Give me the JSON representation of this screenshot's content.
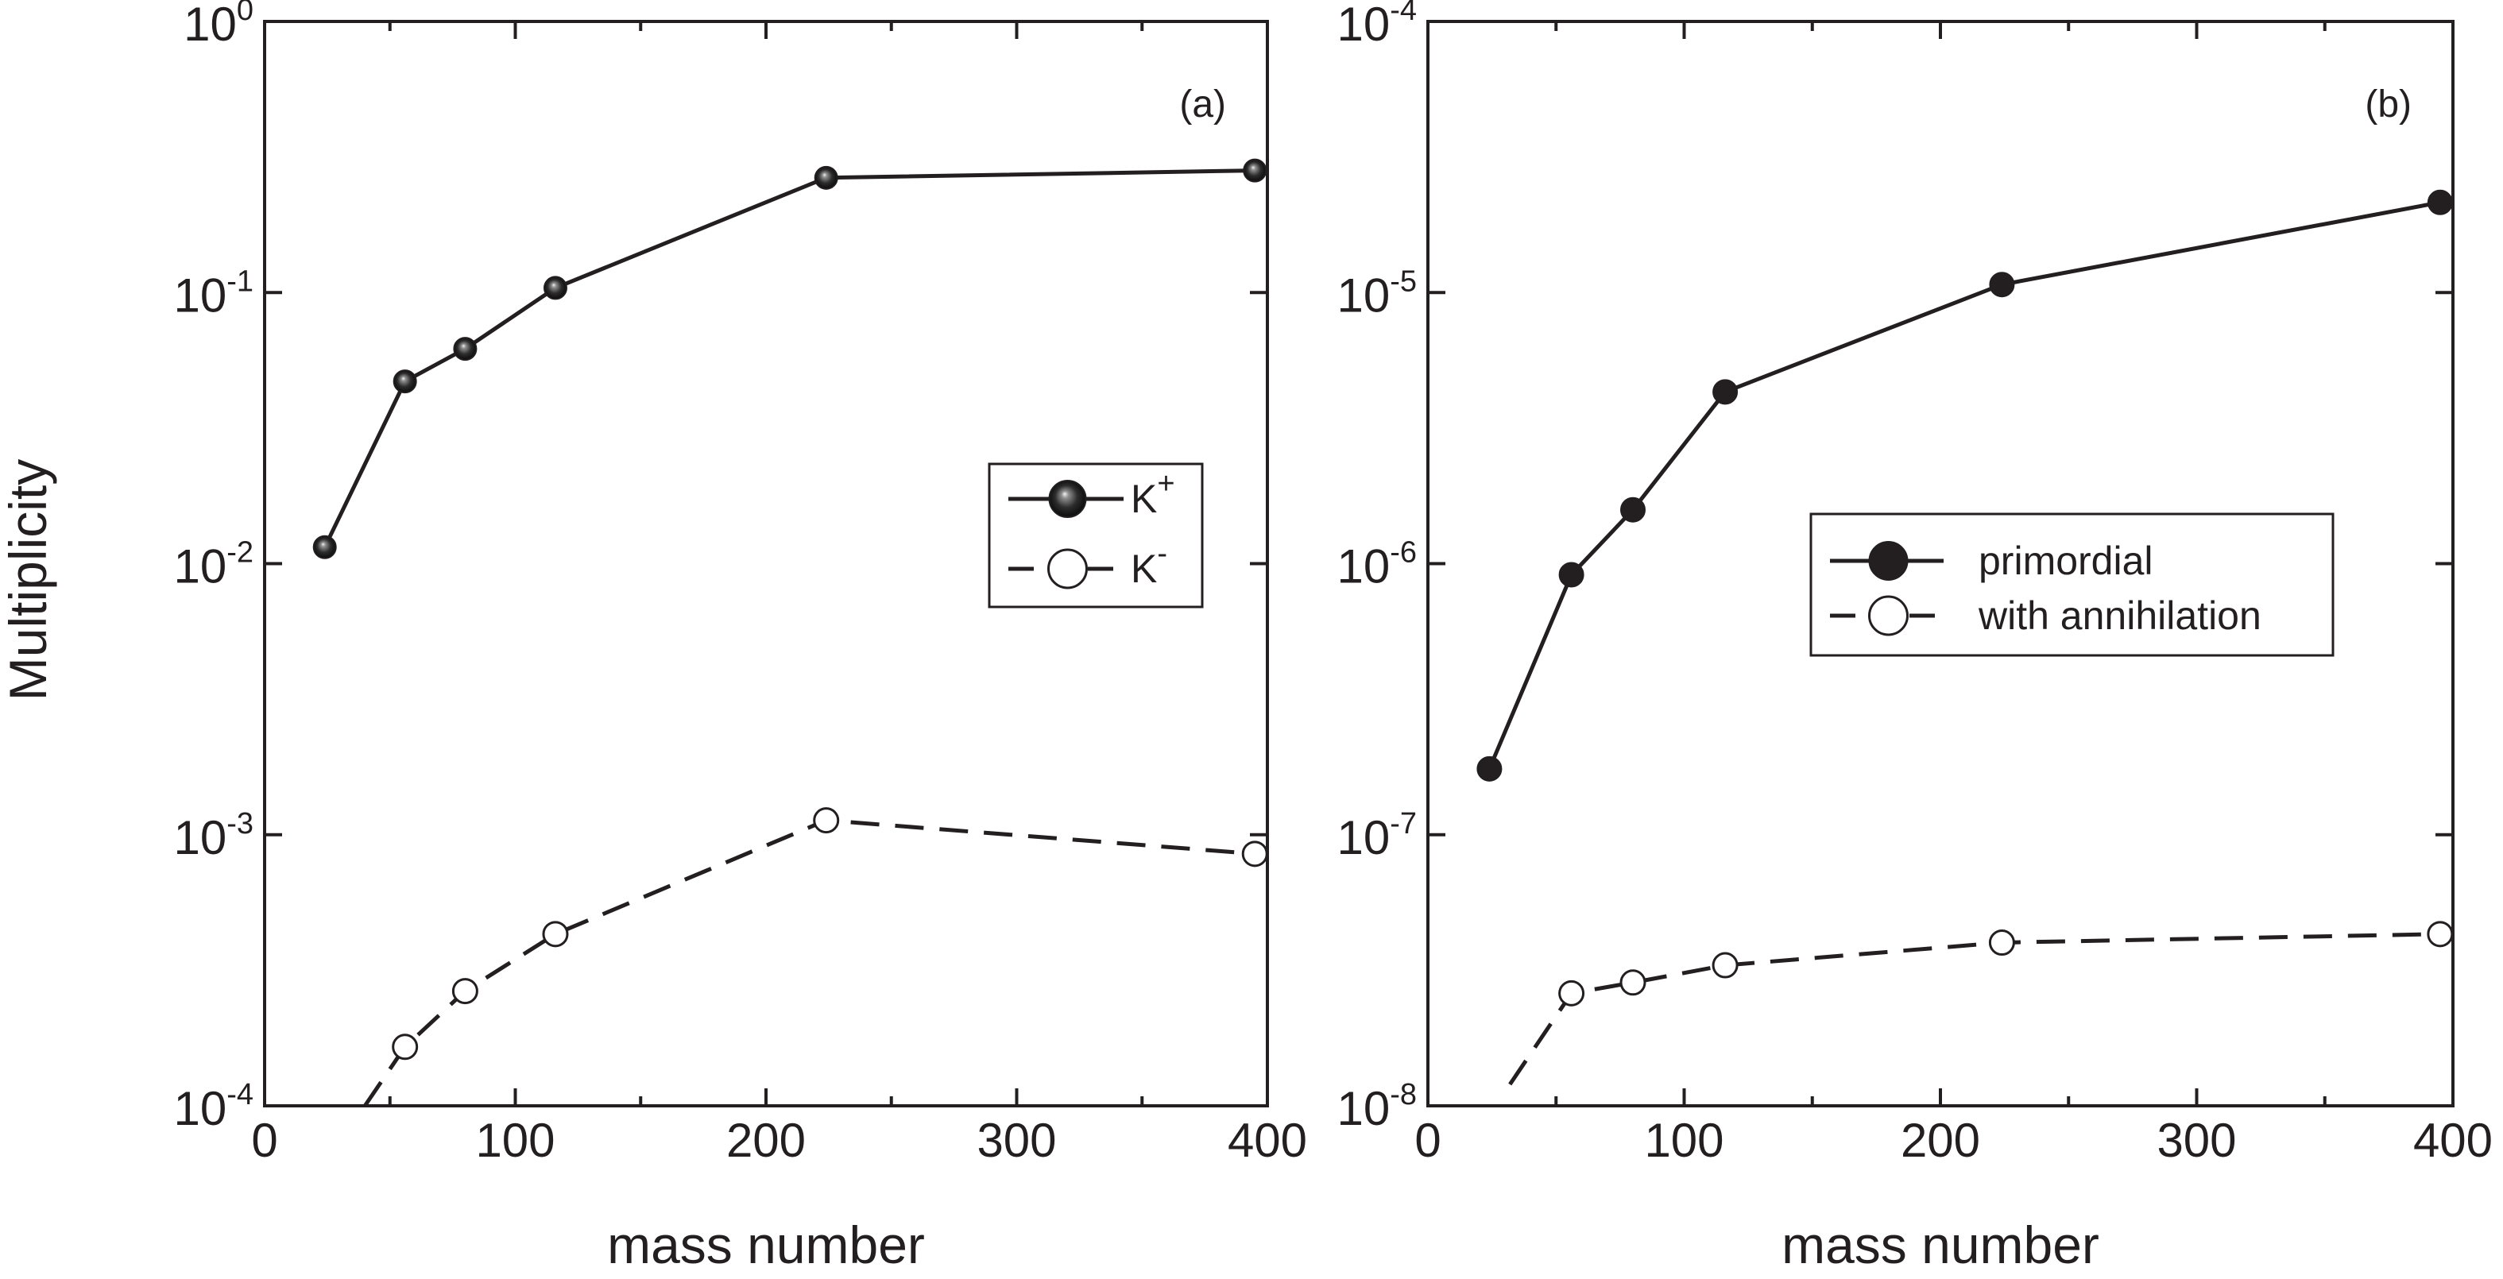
{
  "figure": {
    "ylabel": "Multiplicity",
    "colors": {
      "ink": "#231f20",
      "background": "#ffffff",
      "open_fill": "#ffffff"
    }
  },
  "chart_data": [
    {
      "type": "line",
      "panel_label": "(a)",
      "xlabel": "mass number",
      "ylabel": "Multiplicity",
      "xlim": [
        0,
        400
      ],
      "ylim": [
        0.0001,
        1
      ],
      "yscale": "log",
      "x_ticks": [
        {
          "value": 0,
          "label": "0"
        },
        {
          "value": 100,
          "label": "100"
        },
        {
          "value": 200,
          "label": "200"
        },
        {
          "value": 300,
          "label": "300"
        },
        {
          "value": 400,
          "label": "400"
        }
      ],
      "y_ticks": [
        {
          "exp": 0,
          "base": "10",
          "sup": "0"
        },
        {
          "exp": -1,
          "base": "10",
          "sup": "-1"
        },
        {
          "exp": -2,
          "base": "10",
          "sup": "-2"
        },
        {
          "exp": -3,
          "base": "10",
          "sup": "-3"
        },
        {
          "exp": -4,
          "base": "10",
          "sup": "-4"
        }
      ],
      "legend_position": "center-right",
      "series": [
        {
          "name": "K+",
          "label": "K",
          "label_sup": "+",
          "style": "solid",
          "marker": "sphere",
          "x": [
            24,
            56,
            80,
            116,
            224,
            395
          ],
          "y": [
            0.0115,
            0.047,
            0.062,
            0.104,
            0.265,
            0.282
          ]
        },
        {
          "name": "K-",
          "label": "K",
          "label_sup": "-",
          "style": "dashed",
          "marker": "open-circle",
          "line_start": {
            "x": 40,
            "y": 0.0001
          },
          "x": [
            56,
            80,
            116,
            224,
            395
          ],
          "y": [
            0.000165,
            0.000265,
            0.00043,
            0.00113,
            0.00085
          ]
        }
      ]
    },
    {
      "type": "line",
      "panel_label": "(b)",
      "xlabel": "mass number",
      "ylabel": "",
      "xlim": [
        0,
        400
      ],
      "ylim": [
        1e-08,
        0.0001
      ],
      "yscale": "log",
      "x_ticks": [
        {
          "value": 0,
          "label": "0"
        },
        {
          "value": 100,
          "label": "100"
        },
        {
          "value": 200,
          "label": "200"
        },
        {
          "value": 300,
          "label": "300"
        },
        {
          "value": 400,
          "label": "400"
        }
      ],
      "y_ticks": [
        {
          "exp": -4,
          "base": "10",
          "sup": "-4"
        },
        {
          "exp": -5,
          "base": "10",
          "sup": "-5"
        },
        {
          "exp": -6,
          "base": "10",
          "sup": "-6"
        },
        {
          "exp": -7,
          "base": "10",
          "sup": "-7"
        },
        {
          "exp": -8,
          "base": "10",
          "sup": "-8"
        }
      ],
      "legend_position": "center-right",
      "series": [
        {
          "name": "primordial",
          "label": "primordial",
          "label_sup": "",
          "style": "solid",
          "marker": "filled-circle",
          "x": [
            24,
            56,
            80,
            116,
            224,
            395
          ],
          "y": [
            1.75e-07,
            9.1e-07,
            1.58e-06,
            4.3e-06,
            1.07e-05,
            2.15e-05
          ]
        },
        {
          "name": "with annihilation",
          "label": "with annihilation",
          "label_sup": "",
          "style": "dashed",
          "marker": "open-circle",
          "line_start": {
            "x": 32,
            "y": 1.2e-08
          },
          "x": [
            56,
            80,
            116,
            224,
            395
          ],
          "y": [
            2.6e-08,
            2.85e-08,
            3.3e-08,
            4e-08,
            4.3e-08
          ]
        }
      ]
    }
  ]
}
